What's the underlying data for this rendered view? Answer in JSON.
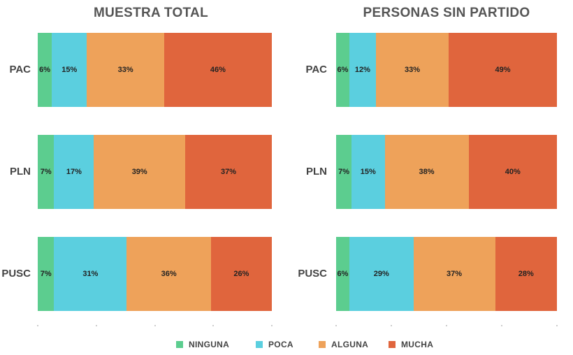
{
  "chart_data": [
    {
      "type": "bar",
      "orientation": "horizontal",
      "stacked": true,
      "title": "MUESTRA TOTAL",
      "categories": [
        "PAC",
        "PLN",
        "PUSC"
      ],
      "series": [
        {
          "name": "NINGUNA",
          "values": [
            6,
            7,
            7
          ],
          "labels": [
            "6%",
            "7%",
            "7%"
          ]
        },
        {
          "name": "POCA",
          "values": [
            15,
            17,
            31
          ],
          "labels": [
            "15%",
            "17%",
            "31%"
          ]
        },
        {
          "name": "ALGUNA",
          "values": [
            33,
            39,
            36
          ],
          "labels": [
            "33%",
            "39%",
            "36%"
          ]
        },
        {
          "name": "MUCHA",
          "values": [
            46,
            37,
            26
          ],
          "labels": [
            "46%",
            "37%",
            "26%"
          ]
        }
      ],
      "xlim": [
        0,
        100
      ]
    },
    {
      "type": "bar",
      "orientation": "horizontal",
      "stacked": true,
      "title": "PERSONAS SIN PARTIDO",
      "categories": [
        "PAC",
        "PLN",
        "PUSC"
      ],
      "series": [
        {
          "name": "NINGUNA",
          "values": [
            6,
            7,
            6
          ],
          "labels": [
            "6%",
            "7%",
            "6%"
          ]
        },
        {
          "name": "POCA",
          "values": [
            12,
            15,
            29
          ],
          "labels": [
            "12%",
            "15%",
            "29%"
          ]
        },
        {
          "name": "ALGUNA",
          "values": [
            33,
            38,
            37
          ],
          "labels": [
            "33%",
            "38%",
            "37%"
          ]
        },
        {
          "name": "MUCHA",
          "values": [
            49,
            40,
            28
          ],
          "labels": [
            "49%",
            "40%",
            "28%"
          ]
        }
      ],
      "xlim": [
        0,
        100
      ]
    }
  ],
  "legend": {
    "placement": "bottom",
    "items": [
      {
        "label": "NINGUNA",
        "color": "#5ccd8f"
      },
      {
        "label": "POCA",
        "color": "#5bcfdf"
      },
      {
        "label": "ALGUNA",
        "color": "#eea25a"
      },
      {
        "label": "MUCHA",
        "color": "#e0653d"
      }
    ]
  }
}
